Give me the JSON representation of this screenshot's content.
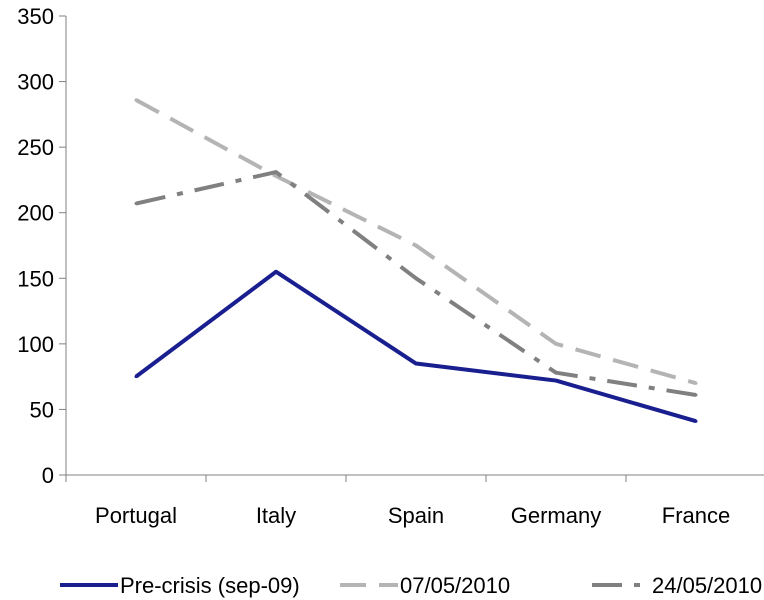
{
  "chart_data": {
    "type": "line",
    "title": "",
    "xlabel": "",
    "ylabel": "",
    "categories": [
      "Portugal",
      "Italy",
      "Spain",
      "Germany",
      "France"
    ],
    "ylim": [
      0,
      350
    ],
    "yticks": [
      0,
      50,
      100,
      150,
      200,
      250,
      300,
      350
    ],
    "grid": false,
    "legend_position": "bottom",
    "series": [
      {
        "name": "Pre-crisis (sep-09)",
        "values": [
          75,
          155,
          85,
          72,
          41
        ],
        "color": "#1a1f8f",
        "style": "solid"
      },
      {
        "name": "07/05/2010",
        "values": [
          286,
          228,
          175,
          100,
          70
        ],
        "color": "#b4b4b4",
        "style": "dashed"
      },
      {
        "name": "24/05/2010",
        "values": [
          207,
          231,
          150,
          78,
          61
        ],
        "color": "#808080",
        "style": "dash-dot"
      }
    ]
  }
}
